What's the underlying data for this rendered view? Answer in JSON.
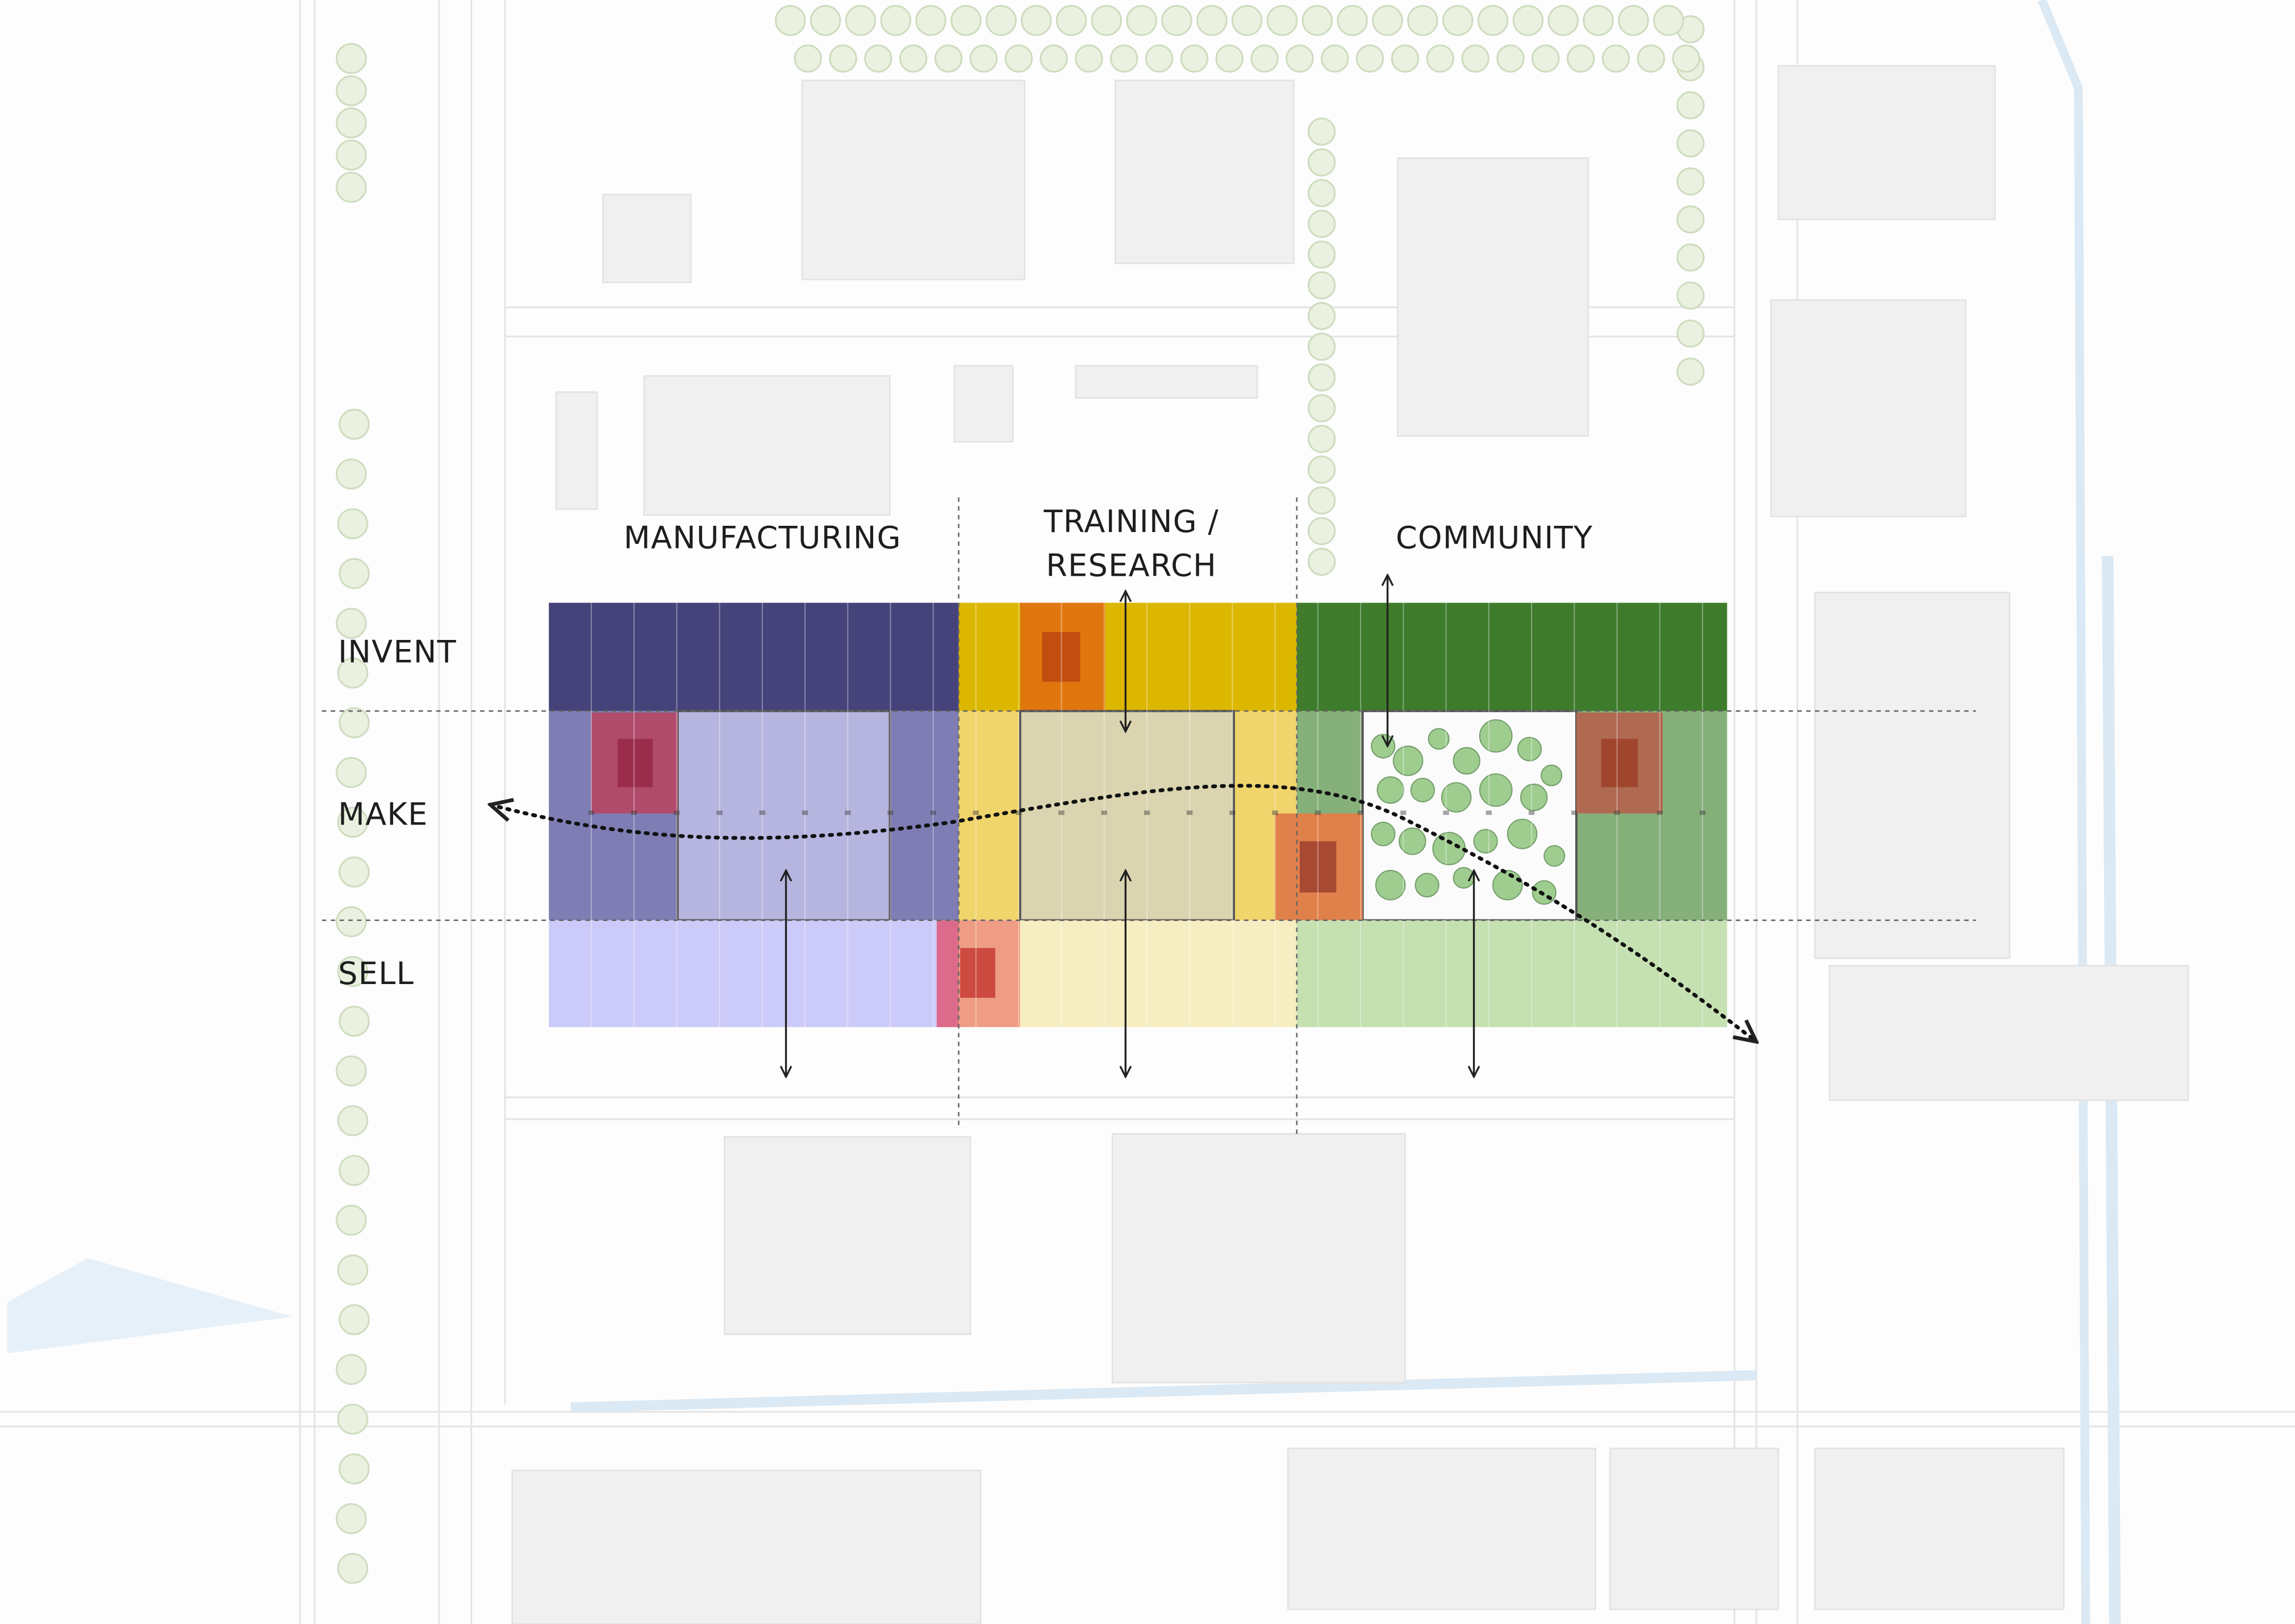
{
  "columns": [
    {
      "lines": [
        "MANUFACTURING"
      ]
    },
    {
      "lines": [
        "TRAINING /",
        "RESEARCH"
      ]
    },
    {
      "lines": [
        "COMMUNITY"
      ]
    }
  ],
  "rows": [
    "INVENT",
    "MAKE",
    "SELL"
  ]
}
